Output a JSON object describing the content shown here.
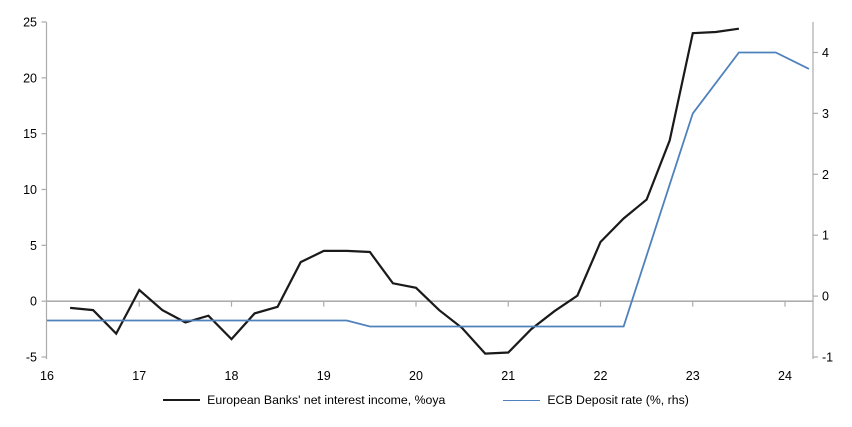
{
  "chart_data": {
    "type": "line",
    "title": "",
    "xlabel": "",
    "ylabel_left": "",
    "ylabel_right": "",
    "grid": "zero-line-only",
    "legend_position": "bottom",
    "x_axis": {
      "ticks": [
        16,
        17,
        18,
        19,
        20,
        21,
        22,
        23,
        24
      ],
      "range": [
        16,
        24.3
      ]
    },
    "y_axis_left": {
      "ticks": [
        -5,
        0,
        5,
        10,
        15,
        20,
        25
      ],
      "range": [
        -5,
        25
      ]
    },
    "y_axis_right": {
      "ticks": [
        -1,
        0,
        1,
        2,
        3,
        4
      ],
      "range": [
        -1,
        4.5
      ]
    },
    "colors": {
      "nii_line": "#1a1a1a",
      "ecb_line": "#4f81bd",
      "axis": "#ababab",
      "zero_line": "#a0a0a0"
    },
    "series": [
      {
        "name": "European Banks' net interest income, %oya",
        "axis": "left",
        "color": "#1a1a1a",
        "x": [
          16.25,
          16.5,
          16.75,
          17.0,
          17.25,
          17.5,
          17.75,
          18.0,
          18.25,
          18.5,
          18.75,
          19.0,
          19.25,
          19.5,
          19.75,
          20.0,
          20.25,
          20.5,
          20.75,
          21.0,
          21.25,
          21.5,
          21.75,
          22.0,
          22.25,
          22.5,
          22.75,
          23.0,
          23.25,
          23.5
        ],
        "values": [
          -0.6,
          -0.8,
          -2.9,
          1.0,
          -0.8,
          -1.9,
          -1.3,
          -3.4,
          -1.1,
          -0.5,
          3.5,
          4.5,
          4.5,
          4.4,
          1.6,
          1.2,
          -0.8,
          -2.4,
          -4.7,
          -4.6,
          -2.5,
          -0.9,
          0.5,
          5.3,
          7.4,
          9.1,
          14.4,
          24.0,
          24.1,
          24.4
        ]
      },
      {
        "name": "ECB Deposit rate (%, rhs)",
        "axis": "right",
        "color": "#4f81bd",
        "x": [
          16.0,
          19.25,
          19.5,
          22.25,
          23.0,
          23.5,
          23.9,
          24.26
        ],
        "values": [
          -0.4,
          -0.4,
          -0.5,
          -0.5,
          3.0,
          4.0,
          4.0,
          3.73
        ]
      }
    ]
  }
}
